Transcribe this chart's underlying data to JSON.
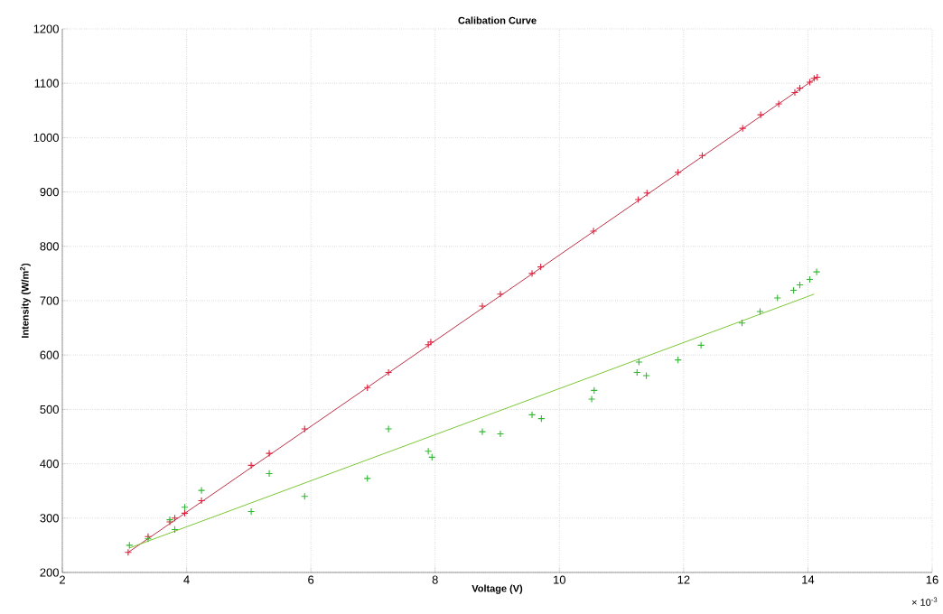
{
  "chart_data": {
    "type": "scatter",
    "title": "Calibation Curve",
    "xlabel": "Voltage (V)",
    "ylabel": "Intensity (W/m$^{2}$)",
    "annotations": [
      "× 10$^{-3}$"
    ],
    "xlim": [
      2,
      16
    ],
    "xticks": [
      2,
      4,
      6,
      8,
      10,
      12,
      14,
      16
    ],
    "ylim": [
      200,
      1200
    ],
    "yticks": [
      200,
      300,
      400,
      500,
      600,
      700,
      800,
      900,
      1000,
      1100,
      1200
    ],
    "grid": true,
    "series": [
      {
        "marker": "cross",
        "color": "#e0203c",
        "x": [
          3.06,
          3.38,
          3.73,
          3.81,
          3.97,
          4.24,
          5.04,
          5.33,
          5.9,
          6.91,
          7.25,
          7.89,
          7.93,
          8.76,
          9.05,
          9.56,
          9.7,
          10.55,
          11.27,
          11.41,
          11.91,
          12.3,
          12.95,
          13.24,
          13.53,
          13.79,
          13.87,
          14.03,
          14.1,
          14.15
        ],
        "values": [
          237,
          266,
          293,
          300,
          309,
          332,
          397,
          419,
          464,
          540,
          568,
          619,
          624,
          690,
          712,
          750,
          762,
          828,
          886,
          898,
          936,
          967,
          1017,
          1042,
          1062,
          1083,
          1091,
          1102,
          1109,
          1111
        ]
      },
      {
        "type": "line",
        "marker": "none",
        "color": "#b81830",
        "x": [
          3.06,
          14.15
        ],
        "values": [
          237,
          1111
        ]
      },
      {
        "marker": "cross",
        "color": "#33b833",
        "x": [
          3.08,
          3.38,
          3.73,
          3.81,
          3.97,
          4.24,
          5.04,
          5.33,
          5.9,
          6.91,
          7.25,
          7.89,
          7.95,
          8.76,
          9.05,
          9.56,
          9.71,
          10.52,
          10.56,
          11.25,
          11.28,
          11.4,
          11.91,
          12.28,
          12.94,
          13.23,
          13.51,
          13.77,
          13.87,
          14.03,
          14.14
        ],
        "values": [
          250,
          262,
          297,
          279,
          320,
          351,
          312,
          382,
          340,
          373,
          464,
          423,
          412,
          459,
          455,
          490,
          483,
          519,
          535,
          568,
          587,
          562,
          591,
          618,
          659,
          680,
          705,
          719,
          729,
          739,
          753
        ]
      },
      {
        "type": "line",
        "marker": "none",
        "color": "#6cc020",
        "x": [
          3.08,
          14.1
        ],
        "values": [
          245,
          712
        ]
      }
    ]
  }
}
